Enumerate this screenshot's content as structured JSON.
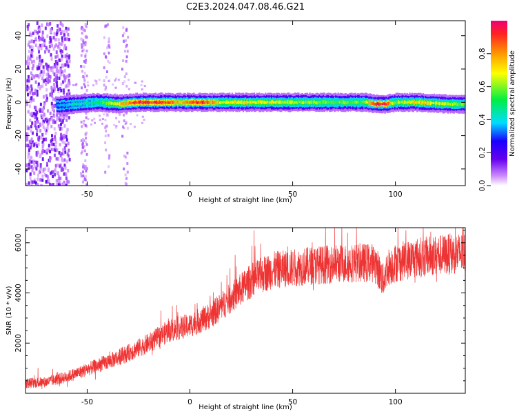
{
  "chart_data": [
    {
      "type": "heatmap",
      "title": "C2E3.2024.047.08.46.G21",
      "xlabel": "Height of straight line (km)",
      "ylabel": "Frequency (Hz)",
      "xlim": [
        -80,
        134
      ],
      "ylim": [
        -50,
        49
      ],
      "xticks": [
        -50,
        0,
        50,
        100
      ],
      "yticks": [
        -40,
        -20,
        0,
        20,
        40
      ],
      "colorbar": {
        "label": "Normalized spectral amplitude",
        "range": [
          0.0,
          1.0
        ],
        "ticks": [
          0.0,
          0.2,
          0.4,
          0.6,
          0.8
        ],
        "colormap": [
          "#ffffff",
          "#cc88ff",
          "#6600ee",
          "#1a00ff",
          "#00ddff",
          "#00ee44",
          "#ffff00",
          "#ff9900",
          "#ff2222",
          "#ee0077"
        ]
      },
      "line_trace": {
        "description_of_band": "narrow band near 0 Hz",
        "x": [
          -65,
          -55,
          -45,
          -35,
          -25,
          -15,
          -5,
          5,
          15,
          30,
          50,
          70,
          85,
          90,
          95,
          100,
          110,
          125,
          134
        ],
        "f": [
          -2,
          -1,
          0,
          -1,
          0,
          0,
          0,
          0,
          0,
          0,
          0,
          0,
          0,
          -1,
          -1,
          0,
          0,
          -1,
          -1
        ],
        "amp": [
          0.35,
          0.45,
          0.5,
          0.75,
          0.95,
          0.95,
          0.8,
          0.95,
          0.7,
          0.7,
          0.65,
          0.6,
          0.6,
          0.95,
          0.95,
          0.6,
          0.75,
          0.65,
          0.6
        ]
      },
      "noise_region_x": [
        -80,
        -62
      ]
    },
    {
      "type": "line",
      "xlabel": "Height of straight line (km)",
      "ylabel": "SNR (10 * v/v)",
      "xlim": [
        -80,
        134
      ],
      "ylim": [
        0,
        6600
      ],
      "xticks": [
        -50,
        0,
        50,
        100
      ],
      "yticks": [
        2000,
        4000,
        6000
      ],
      "color": "#ee3333",
      "series": [
        {
          "x": [
            -80,
            -70,
            -60,
            -50,
            -40,
            -30,
            -20,
            -10,
            0,
            10,
            20,
            30,
            40,
            50,
            60,
            70,
            80,
            90,
            94,
            96,
            100,
            110,
            120,
            134
          ],
          "y": [
            400,
            450,
            650,
            950,
            1250,
            1600,
            2000,
            2500,
            2700,
            3100,
            3800,
            4500,
            4900,
            5000,
            5100,
            5150,
            5200,
            5200,
            4500,
            5000,
            5200,
            5400,
            5500,
            5600
          ]
        }
      ]
    }
  ]
}
